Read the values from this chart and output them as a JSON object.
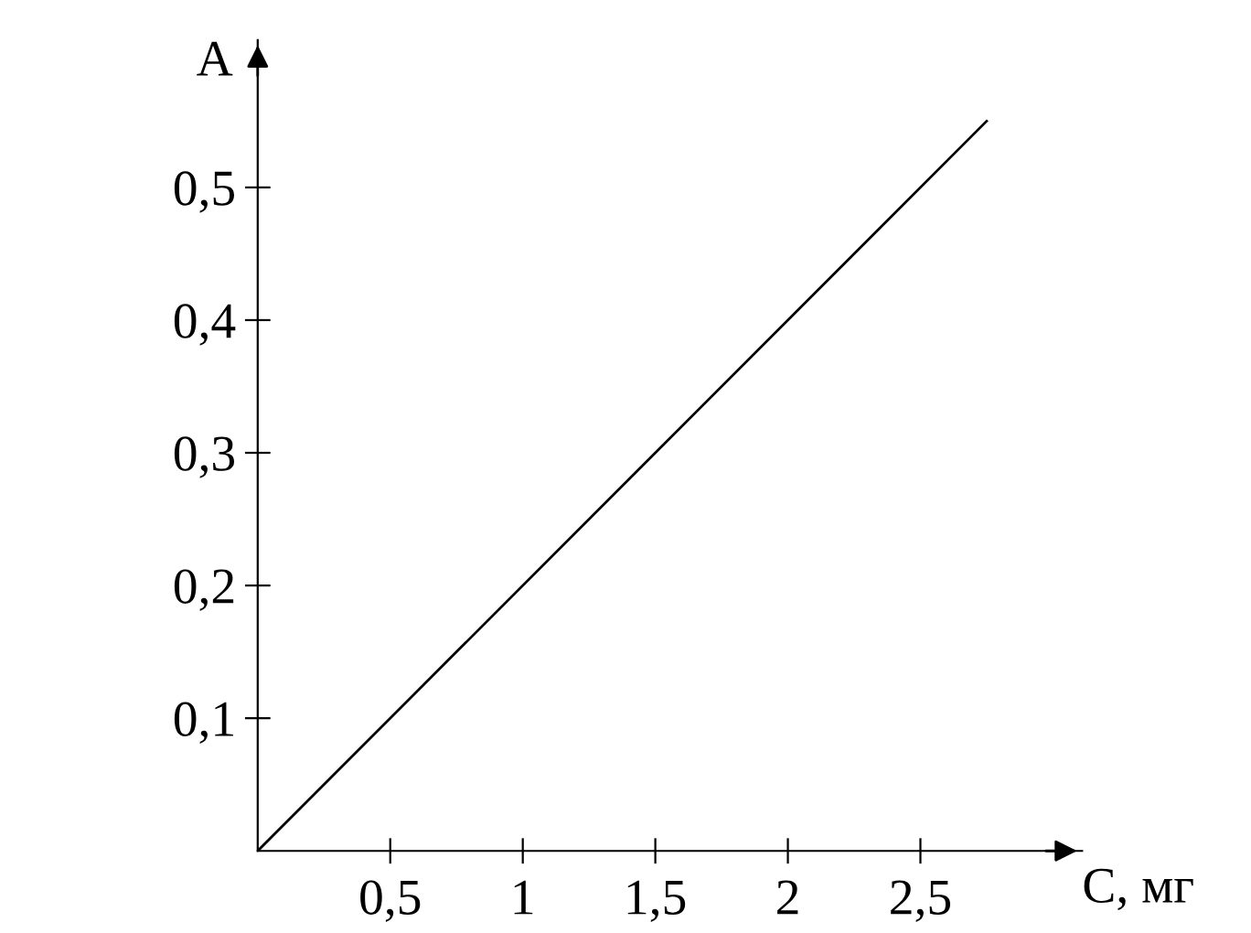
{
  "chart_data": {
    "type": "line",
    "xlabel": "C, мг",
    "ylabel": "A",
    "x": [
      0,
      2.75
    ],
    "series": [
      {
        "color": "#000000",
        "values": [
          0,
          0.55
        ]
      }
    ],
    "xlim": [
      0,
      3.11
    ],
    "ylim": [
      0,
      0.611
    ],
    "xticks": [
      {
        "value": 0.5,
        "label": "0,5"
      },
      1,
      {
        "value": 1.5,
        "label": "1,5"
      },
      2,
      {
        "value": 2.5,
        "label": "2,5"
      }
    ],
    "yticks": [
      {
        "value": 0.1,
        "label": "0,1"
      },
      {
        "value": 0.2,
        "label": "0,2"
      },
      {
        "value": 0.3,
        "label": "0,3"
      },
      {
        "value": 0.4,
        "label": "0,4"
      },
      {
        "value": 0.5,
        "label": "0,5"
      }
    ],
    "grid": false,
    "legend": false,
    "marker": "none",
    "line_style": "solid"
  }
}
